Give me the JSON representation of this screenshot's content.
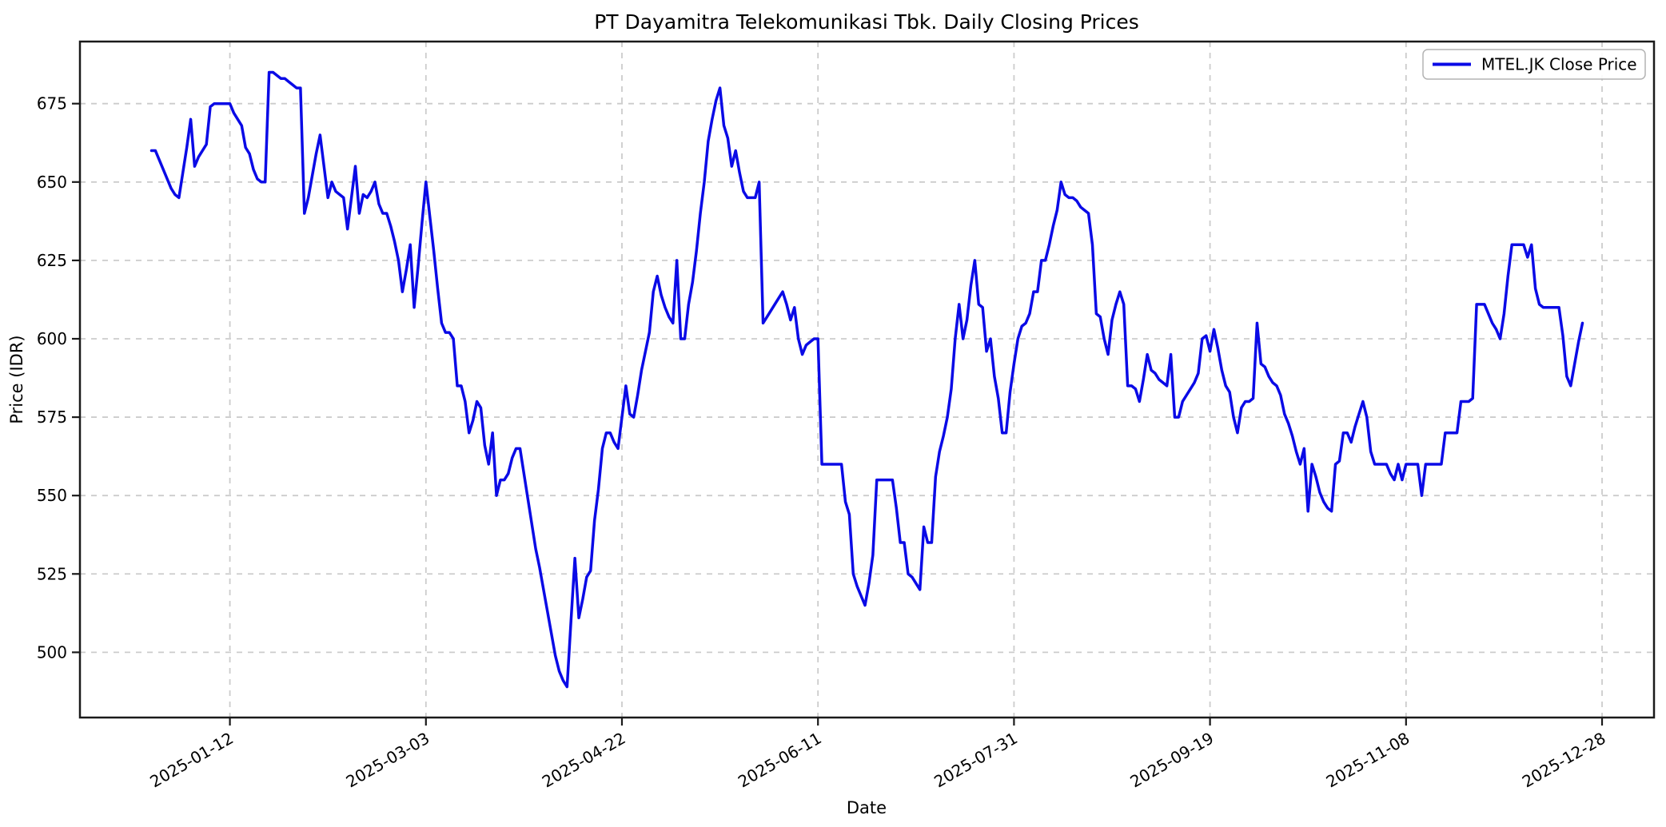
{
  "chart_data": {
    "type": "line",
    "title": "PT Dayamitra Telekomunikasi Tbk. Daily Closing Prices",
    "xlabel": "Date",
    "ylabel": "Price (IDR)",
    "legend": {
      "label": "MTEL.JK Close Price",
      "position": "upper right"
    },
    "line_color": "#0a0ae6",
    "grid": {
      "on": true,
      "style": "dashed",
      "color": "#cccccc"
    },
    "y_ticks": [
      500,
      525,
      550,
      575,
      600,
      625,
      650,
      675
    ],
    "ylim": [
      479.2,
      694.8
    ],
    "x_tick_labels": [
      "2025-01-12",
      "2025-03-03",
      "2025-04-22",
      "2025-06-11",
      "2025-07-31",
      "2025-09-19",
      "2025-11-08",
      "2025-12-28"
    ],
    "x_tick_days": [
      20,
      70,
      120,
      170,
      220,
      270,
      320,
      370
    ],
    "x_tick_interval_days": 50,
    "xlim_days": [
      -18.25,
      383.25
    ],
    "num_points": 366,
    "series": [
      {
        "name": "MTEL.JK Close Price",
        "color": "#0a0ae6",
        "x_day_offset_of_first_point": 0,
        "values": [
          660,
          660,
          657,
          654,
          651,
          648,
          646,
          645,
          653,
          661,
          670,
          655,
          658,
          660,
          662,
          674,
          675,
          675,
          675,
          675,
          675,
          672,
          670,
          668,
          661,
          659,
          654,
          651,
          650,
          650,
          685,
          685,
          684,
          683,
          683,
          682,
          681,
          680,
          680,
          640,
          645,
          652,
          659,
          665,
          655,
          645,
          650,
          647,
          646,
          645,
          635,
          645,
          655,
          640,
          646,
          645,
          647,
          650,
          643,
          640,
          640,
          636,
          631,
          625,
          615,
          622,
          630,
          610,
          623,
          637,
          650,
          639,
          628,
          616,
          605,
          602,
          602,
          600,
          585,
          585,
          580,
          570,
          574,
          580,
          578,
          566,
          560,
          570,
          550,
          555,
          555,
          557,
          562,
          565,
          565,
          557,
          549,
          541,
          533,
          527,
          520,
          513,
          506,
          499,
          494,
          491,
          489,
          510,
          530,
          511,
          517,
          524,
          526,
          542,
          552,
          565,
          570,
          570,
          567,
          565,
          575,
          585,
          576,
          575,
          582,
          590,
          596,
          602,
          615,
          620,
          614,
          610,
          607,
          605,
          625,
          600,
          600,
          611,
          618,
          628,
          640,
          650,
          663,
          670,
          676,
          680,
          668,
          664,
          655,
          660,
          653,
          647,
          645,
          645,
          645,
          650,
          605,
          607,
          609,
          611,
          613,
          615,
          611,
          606,
          610,
          600,
          595,
          598,
          599,
          600,
          600,
          560,
          560,
          560,
          560,
          560,
          560,
          548,
          544,
          525,
          521,
          518,
          515,
          522,
          531,
          555,
          555,
          555,
          555,
          555,
          546,
          535,
          535,
          525,
          524,
          522,
          520,
          540,
          535,
          535,
          556,
          564,
          569,
          575,
          584,
          600,
          611,
          600,
          606,
          617,
          625,
          611,
          610,
          596,
          600,
          588,
          581,
          570,
          570,
          583,
          592,
          600,
          604,
          605,
          608,
          615,
          615,
          625,
          625,
          630,
          636,
          641,
          650,
          646,
          645,
          645,
          644,
          642,
          641,
          640,
          630,
          608,
          607,
          600,
          595,
          606,
          611,
          615,
          611,
          585,
          585,
          584,
          580,
          587,
          595,
          590,
          589,
          587,
          586,
          585,
          595,
          575,
          575,
          580,
          582,
          584,
          586,
          589,
          600,
          601,
          596,
          603,
          597,
          590,
          585,
          583,
          575,
          570,
          578,
          580,
          580,
          581,
          605,
          592,
          591,
          588,
          586,
          585,
          582,
          576,
          573,
          569,
          564,
          560,
          565,
          545,
          560,
          556,
          551,
          548,
          546,
          545,
          560,
          561,
          570,
          570,
          567,
          572,
          576,
          580,
          575,
          564,
          560,
          560,
          560,
          560,
          557,
          555,
          560,
          555,
          560,
          560,
          560,
          560,
          550,
          560,
          560,
          560,
          560,
          560,
          570,
          570,
          570,
          570,
          580,
          580,
          580,
          581,
          611,
          611,
          611,
          608,
          605,
          603,
          600,
          608,
          620,
          630,
          630,
          630,
          630,
          626,
          630,
          616,
          611,
          610,
          610,
          610,
          610,
          610,
          601,
          588,
          585,
          592,
          599,
          605
        ]
      }
    ]
  }
}
